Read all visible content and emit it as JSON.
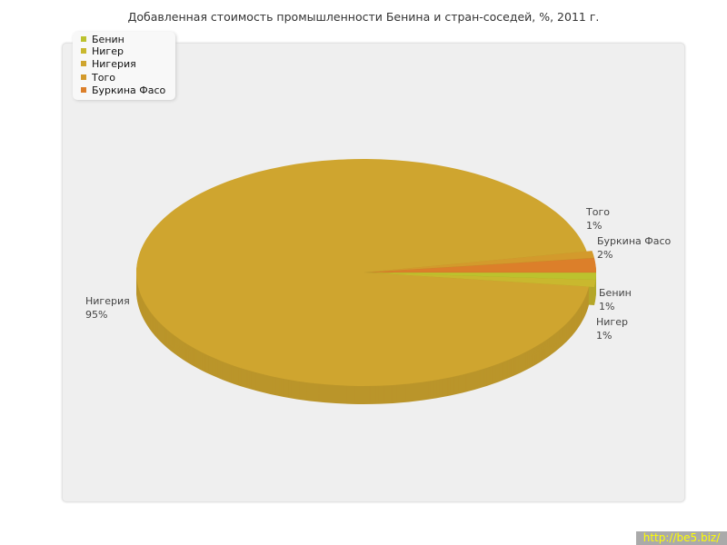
{
  "chart_data": {
    "type": "pie",
    "title": "Добавленная стоимость промышленности Бенина и стран-соседей, %, 2011 г.",
    "categories": [
      "Бенин",
      "Нигер",
      "Нигерия",
      "Того",
      "Буркина Фасо"
    ],
    "values": [
      1,
      1,
      95,
      1,
      2
    ],
    "value_labels": [
      "1%",
      "1%",
      "95%",
      "1%",
      "2%"
    ],
    "colors": [
      "#bcc22e",
      "#c9b82e",
      "#cfa52f",
      "#d39a2c",
      "#dc7f2a"
    ],
    "legend_position": "top-left",
    "three_d": true
  },
  "watermark": "http://be5.biz/"
}
